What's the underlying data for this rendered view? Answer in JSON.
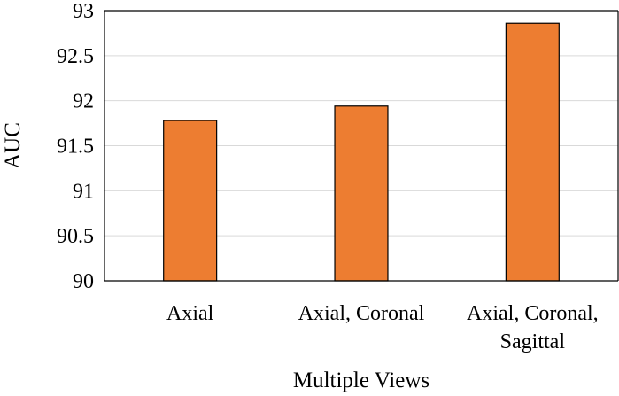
{
  "chart_data": {
    "type": "bar",
    "categories": [
      "Axial",
      "Axial, Coronal",
      "Axial, Coronal, Sagittal"
    ],
    "category_lines": [
      [
        "Axial"
      ],
      [
        "Axial, Coronal"
      ],
      [
        "Axial, Coronal,",
        "Sagittal"
      ]
    ],
    "values": [
      91.78,
      91.94,
      92.86
    ],
    "title": "",
    "xlabel": "Multiple Views",
    "ylabel": "AUC",
    "ylim": [
      90,
      93
    ],
    "yticks": [
      90,
      90.5,
      91,
      91.5,
      92,
      92.5,
      93
    ],
    "ytick_labels": [
      "90",
      "90.5",
      "91",
      "91.5",
      "92",
      "92.5",
      "93"
    ],
    "grid": true,
    "legend": "none",
    "colors": {
      "bar_fill": "#ED7D31",
      "bar_edge": "#000000",
      "grid": "#D9D9D9",
      "axis": "#000000"
    }
  }
}
